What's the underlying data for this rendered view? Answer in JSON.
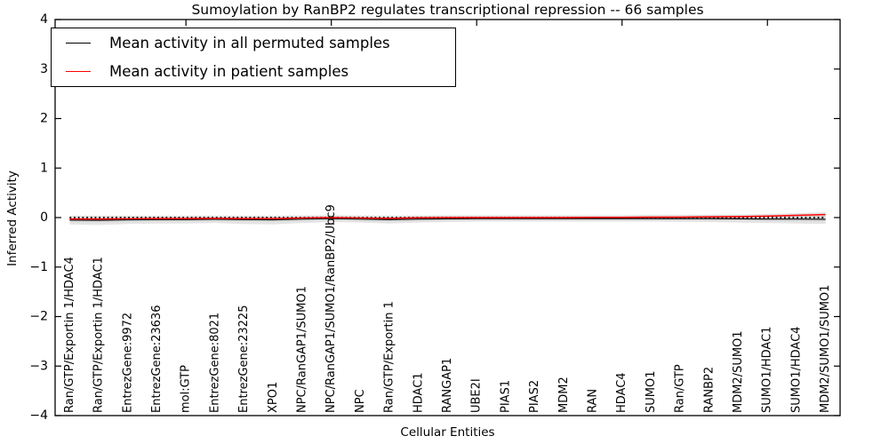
{
  "figure": {
    "title": "Sumoylation by RanBP2 regulates transcriptional repression -- 66 samples",
    "xlabel": "Cellular Entities",
    "ylabel": "Inferred Activity"
  },
  "legend": {
    "items": [
      {
        "label": "Mean activity in all permuted samples",
        "color": "#000000"
      },
      {
        "label": "Mean activity in patient samples",
        "color": "#ff0000"
      }
    ]
  },
  "chart_data": {
    "type": "line",
    "title": "Sumoylation by RanBP2 regulates transcriptional repression -- 66 samples",
    "xlabel": "Cellular Entities",
    "ylabel": "Inferred Activity",
    "ylim": [
      -4,
      4
    ],
    "grid": false,
    "legend_position": "upper left",
    "zero_line": {
      "value": 0,
      "style": "dotted",
      "color": "#000000"
    },
    "band_color_outer": "#e4e4e4",
    "band_color_inner": "#d6d6d6",
    "yticks": [
      {
        "value": 4,
        "label": "4"
      },
      {
        "value": 3,
        "label": "3"
      },
      {
        "value": 2,
        "label": "2"
      },
      {
        "value": 1,
        "label": "1"
      },
      {
        "value": 0,
        "label": "0"
      },
      {
        "value": -1,
        "label": "−1"
      },
      {
        "value": -2,
        "label": "−2"
      },
      {
        "value": -3,
        "label": "−3"
      },
      {
        "value": -4,
        "label": "−4"
      }
    ],
    "categories": [
      "Ran/GTP/Exportin 1/HDAC4",
      "Ran/GTP/Exportin 1/HDAC1",
      "EntrezGene:9972",
      "EntrezGene:23636",
      "mol:GTP",
      "EntrezGene:8021",
      "EntrezGene:23225",
      "XPO1",
      "NPC/RanGAP1/SUMO1",
      "NPC/RanGAP1/SUMO1/RanBP2/Ubc9",
      "NPC",
      "Ran/GTP/Exportin 1",
      "HDAC1",
      "RANGAP1",
      "UBE2I",
      "PIAS1",
      "PIAS2",
      "MDM2",
      "RAN",
      "HDAC4",
      "SUMO1",
      "Ran/GTP",
      "RANBP2",
      "MDM2/SUMO1",
      "SUMO1/HDAC1",
      "SUMO1/HDAC4",
      "MDM2/SUMO1/SUMO1"
    ],
    "series": [
      {
        "name": "Mean activity in all permuted samples",
        "color": "#000000",
        "values": [
          -0.05,
          -0.055,
          -0.045,
          -0.04,
          -0.04,
          -0.035,
          -0.04,
          -0.045,
          -0.03,
          -0.02,
          -0.03,
          -0.04,
          -0.03,
          -0.025,
          -0.02,
          -0.02,
          -0.02,
          -0.02,
          -0.02,
          -0.02,
          -0.02,
          -0.02,
          -0.02,
          -0.025,
          -0.03,
          -0.03,
          -0.035
        ]
      },
      {
        "name": "Mean activity in patient samples",
        "color": "#ff0000",
        "values": [
          -0.03,
          -0.03,
          -0.025,
          -0.02,
          -0.02,
          -0.015,
          -0.02,
          -0.02,
          -0.01,
          0.0,
          -0.01,
          -0.015,
          -0.005,
          0.0,
          0.0,
          0.0,
          0.0,
          0.0,
          0.005,
          0.005,
          0.01,
          0.01,
          0.015,
          0.02,
          0.03,
          0.045,
          0.06
        ]
      }
    ],
    "band": {
      "outer_lower": [
        -0.14,
        -0.15,
        -0.13,
        -0.12,
        -0.12,
        -0.11,
        -0.13,
        -0.14,
        -0.11,
        -0.09,
        -0.1,
        -0.12,
        -0.1,
        -0.09,
        -0.08,
        -0.08,
        -0.08,
        -0.08,
        -0.08,
        -0.08,
        -0.08,
        -0.085,
        -0.09,
        -0.1,
        -0.11,
        -0.12,
        -0.13
      ],
      "outer_upper": [
        0.04,
        0.04,
        0.04,
        0.04,
        0.04,
        0.04,
        0.04,
        0.04,
        0.045,
        0.05,
        0.045,
        0.04,
        0.045,
        0.05,
        0.05,
        0.05,
        0.05,
        0.05,
        0.05,
        0.05,
        0.055,
        0.055,
        0.06,
        0.065,
        0.075,
        0.09,
        0.11
      ],
      "inner_lower": [
        -0.09,
        -0.095,
        -0.085,
        -0.08,
        -0.08,
        -0.075,
        -0.08,
        -0.085,
        -0.07,
        -0.06,
        -0.07,
        -0.08,
        -0.07,
        -0.065,
        -0.06,
        -0.06,
        -0.06,
        -0.06,
        -0.06,
        -0.06,
        -0.06,
        -0.06,
        -0.06,
        -0.065,
        -0.07,
        -0.075,
        -0.08
      ],
      "inner_upper": [
        -0.02,
        -0.025,
        -0.015,
        -0.01,
        -0.01,
        -0.005,
        -0.01,
        -0.015,
        0.0,
        0.01,
        0.0,
        -0.01,
        0.0,
        0.005,
        0.01,
        0.01,
        0.01,
        0.01,
        0.01,
        0.01,
        0.01,
        0.01,
        0.015,
        0.015,
        0.02,
        0.03,
        0.04
      ]
    },
    "top_tick_category_indices": [
      4,
      9,
      14,
      19,
      24
    ]
  }
}
